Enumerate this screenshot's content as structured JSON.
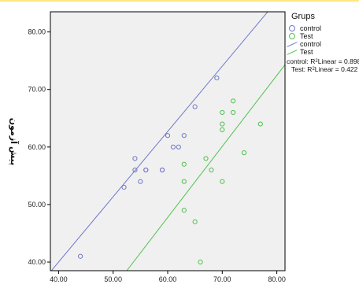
{
  "colors": {
    "control": "#7078c8",
    "test": "#4ec24e",
    "plot_bg": "#f0f0f0",
    "top_rule": "#ffe680"
  },
  "legend": {
    "title": "Grups",
    "items": [
      {
        "symbol": "circle-icon",
        "label": "control",
        "series": "control"
      },
      {
        "symbol": "circle-icon",
        "label": "Test",
        "series": "test"
      },
      {
        "symbol": "line-icon",
        "label": "control",
        "series": "control"
      },
      {
        "symbol": "line-icon",
        "label": "Test",
        "series": "test"
      }
    ],
    "r2": [
      {
        "prefix": "control: R",
        "sup": "2",
        "suffix": " Linear = 0.898"
      },
      {
        "prefix": "Test: R",
        "sup": "2",
        "suffix": " Linear = 0.422"
      }
    ]
  },
  "chart_data": {
    "type": "scatter",
    "title": "",
    "xlabel": "",
    "ylabel": "پیش آزمون",
    "xlim": [
      38.5,
      81.5
    ],
    "ylim": [
      38.5,
      83.5
    ],
    "x_ticks": [
      "40.00",
      "50.00",
      "60.00",
      "70.00",
      "80.00"
    ],
    "y_ticks": [
      "40.00",
      "50.00",
      "60.00",
      "70.00",
      "80.00"
    ],
    "x_tick_values": [
      40,
      50,
      60,
      70,
      80
    ],
    "y_tick_values": [
      40,
      50,
      60,
      70,
      80
    ],
    "grid": false,
    "legend_position": "right",
    "series": [
      {
        "name": "control",
        "color": "#7078c8",
        "points": [
          [
            44,
            41
          ],
          [
            52,
            53
          ],
          [
            54,
            56
          ],
          [
            54,
            58
          ],
          [
            55,
            54
          ],
          [
            56,
            56
          ],
          [
            56,
            56
          ],
          [
            59,
            56
          ],
          [
            59,
            56
          ],
          [
            60,
            62
          ],
          [
            61,
            60
          ],
          [
            62,
            60
          ],
          [
            63,
            62
          ],
          [
            65,
            67
          ],
          [
            69,
            72
          ]
        ],
        "fit": [
          [
            38.5,
            38.3
          ],
          [
            81.5,
            87.1
          ]
        ]
      },
      {
        "name": "Test",
        "color": "#4ec24e",
        "points": [
          [
            63,
            57
          ],
          [
            63,
            54
          ],
          [
            63,
            49
          ],
          [
            65,
            47
          ],
          [
            66,
            40
          ],
          [
            67,
            58
          ],
          [
            68,
            56
          ],
          [
            70,
            66
          ],
          [
            70,
            64
          ],
          [
            70,
            63
          ],
          [
            70,
            54
          ],
          [
            72,
            68
          ],
          [
            72,
            66
          ],
          [
            74,
            59
          ],
          [
            77,
            64
          ]
        ],
        "fit": [
          [
            52.5,
            38.5
          ],
          [
            81.5,
            74.3
          ]
        ]
      }
    ]
  }
}
